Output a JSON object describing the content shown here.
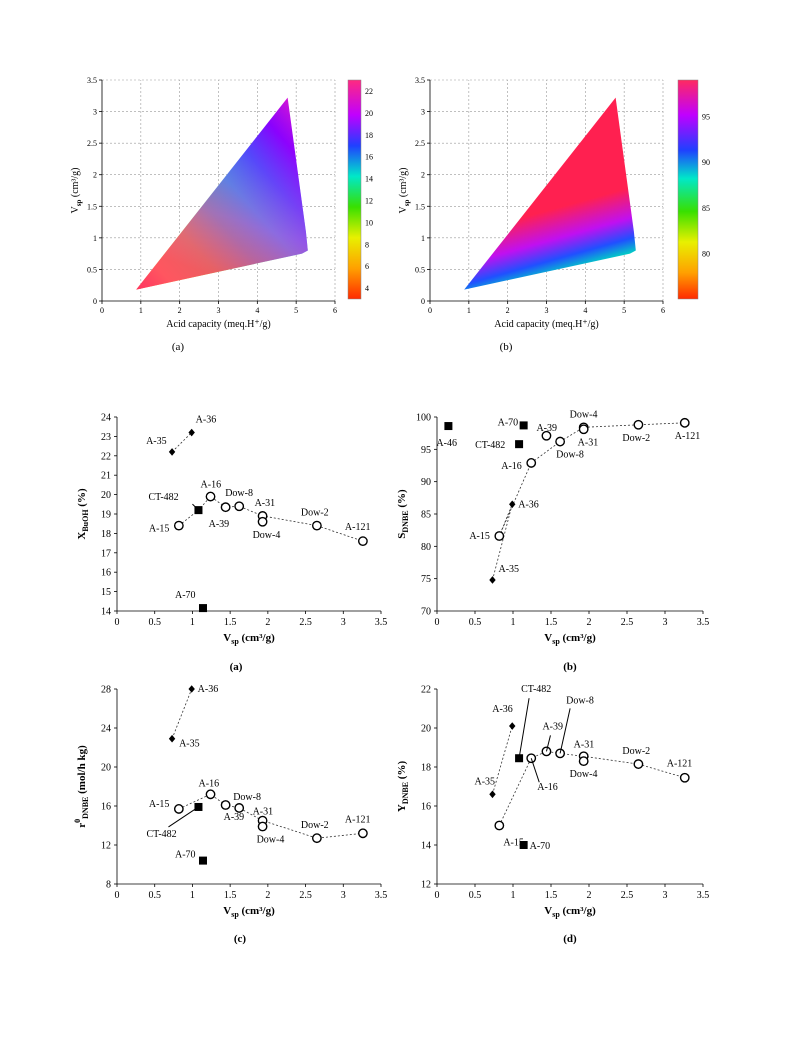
{
  "figure_top": {
    "panels": [
      {
        "caption": "(a)",
        "xlabel": "Acid capacity (meq.H⁺/g)",
        "ylabel_main": "V",
        "ylabel_sub": "sp",
        "ylabel_tail": " (cm³/g)",
        "xticks": [
          "0",
          "1",
          "2",
          "3",
          "4",
          "5",
          "6"
        ],
        "yticks": [
          "0",
          "0.5",
          "1",
          "1.5",
          "2",
          "2.5",
          "3",
          "3.5"
        ],
        "colorbar_ticks": [
          "4",
          "6",
          "8",
          "10",
          "12",
          "14",
          "16",
          "18",
          "20",
          "22"
        ],
        "colorbar_range": [
          3,
          23
        ]
      },
      {
        "caption": "(b)",
        "xlabel": "Acid capacity (meq.H⁺/g)",
        "ylabel_main": "V",
        "ylabel_sub": "sp",
        "ylabel_tail": " (cm³/g)",
        "xticks": [
          "0",
          "1",
          "2",
          "3",
          "4",
          "5",
          "6"
        ],
        "yticks": [
          "0",
          "0.5",
          "1",
          "1.5",
          "2",
          "2.5",
          "3",
          "3.5"
        ],
        "colorbar_ticks": [
          "80",
          "85",
          "90",
          "95"
        ],
        "colorbar_range": [
          75,
          99
        ]
      }
    ]
  },
  "chart_data": [
    {
      "type": "scatter",
      "caption": "(a)",
      "ylabel_main": "X",
      "ylabel_sub": "BuOH",
      "ylabel_tail": " (%)",
      "xlabel_main": "V",
      "xlabel_sub": "sp",
      "xlabel_tail": " (cm³/g)",
      "xlim": [
        0,
        3.5
      ],
      "ylim": [
        14,
        24
      ],
      "xticks": [
        0,
        0.5,
        1,
        1.5,
        2,
        2.5,
        3,
        3.5
      ],
      "yticks": [
        14,
        15,
        16,
        17,
        18,
        19,
        20,
        21,
        22,
        23,
        24
      ],
      "points": [
        {
          "label": "A-35",
          "x": 0.73,
          "y": 22.2,
          "marker": "diamond"
        },
        {
          "label": "A-36",
          "x": 0.99,
          "y": 23.2,
          "marker": "diamond"
        },
        {
          "label": "A-15",
          "x": 0.82,
          "y": 18.4,
          "marker": "circle"
        },
        {
          "label": "CT-482",
          "x": 1.08,
          "y": 19.2,
          "marker": "square"
        },
        {
          "label": "A-16",
          "x": 1.24,
          "y": 19.9,
          "marker": "circle"
        },
        {
          "label": "A-39",
          "x": 1.44,
          "y": 19.35,
          "marker": "circle"
        },
        {
          "label": "Dow-8",
          "x": 1.62,
          "y": 19.4,
          "marker": "circle"
        },
        {
          "label": "A-31",
          "x": 1.93,
          "y": 18.9,
          "marker": "circle"
        },
        {
          "label": "Dow-4",
          "x": 1.93,
          "y": 18.6,
          "marker": "circle"
        },
        {
          "label": "Dow-2",
          "x": 2.65,
          "y": 18.4,
          "marker": "circle"
        },
        {
          "label": "A-121",
          "x": 3.26,
          "y": 17.6,
          "marker": "circle"
        },
        {
          "label": "A-70",
          "x": 1.14,
          "y": 14.15,
          "marker": "square"
        }
      ]
    },
    {
      "type": "scatter",
      "caption": "(b)",
      "ylabel_main": "S",
      "ylabel_sub": "DNBE",
      "ylabel_tail": " (%)",
      "xlabel_main": "V",
      "xlabel_sub": "sp",
      "xlabel_tail": " (cm³/g)",
      "xlim": [
        0,
        3.5
      ],
      "ylim": [
        70,
        100
      ],
      "xticks": [
        0,
        0.5,
        1,
        1.5,
        2,
        2.5,
        3,
        3.5
      ],
      "yticks": [
        70,
        75,
        80,
        85,
        90,
        95,
        100
      ],
      "points": [
        {
          "label": "A-46",
          "x": 0.15,
          "y": 98.6,
          "marker": "square"
        },
        {
          "label": "A-70",
          "x": 1.14,
          "y": 98.7,
          "marker": "square"
        },
        {
          "label": "CT-482",
          "x": 1.08,
          "y": 95.8,
          "marker": "square"
        },
        {
          "label": "A-39",
          "x": 1.44,
          "y": 97.1,
          "marker": "circle"
        },
        {
          "label": "Dow-4",
          "x": 1.93,
          "y": 98.4,
          "marker": "circle"
        },
        {
          "label": "A-31",
          "x": 1.93,
          "y": 98.1,
          "marker": "circle"
        },
        {
          "label": "Dow-8",
          "x": 1.62,
          "y": 96.2,
          "marker": "circle"
        },
        {
          "label": "A-16",
          "x": 1.24,
          "y": 92.9,
          "marker": "circle"
        },
        {
          "label": "Dow-2",
          "x": 2.65,
          "y": 98.8,
          "marker": "circle"
        },
        {
          "label": "A-121",
          "x": 3.26,
          "y": 99.1,
          "marker": "circle"
        },
        {
          "label": "A-36",
          "x": 0.99,
          "y": 86.5,
          "marker": "diamond"
        },
        {
          "label": "A-15",
          "x": 0.82,
          "y": 81.6,
          "marker": "circle"
        },
        {
          "label": "A-35",
          "x": 0.73,
          "y": 74.8,
          "marker": "diamond"
        }
      ]
    },
    {
      "type": "scatter",
      "caption": "(c)",
      "ylabel_main": "r",
      "ylabel_sup": "0",
      "ylabel_sub": "DNBE",
      "ylabel_tail": " (mol/h kg)",
      "xlabel_main": "V",
      "xlabel_sub": "sp",
      "xlabel_tail": " (cm³/g)",
      "xlim": [
        0,
        3.5
      ],
      "ylim": [
        8,
        28
      ],
      "xticks": [
        0,
        0.5,
        1,
        1.5,
        2,
        2.5,
        3,
        3.5
      ],
      "yticks": [
        8,
        12,
        16,
        20,
        24,
        28
      ],
      "points": [
        {
          "label": "A-36",
          "x": 0.99,
          "y": 28.0,
          "marker": "diamond"
        },
        {
          "label": "A-35",
          "x": 0.73,
          "y": 22.9,
          "marker": "diamond"
        },
        {
          "label": "A-15",
          "x": 0.82,
          "y": 15.7,
          "marker": "circle"
        },
        {
          "label": "CT-482",
          "x": 1.08,
          "y": 15.9,
          "marker": "square"
        },
        {
          "label": "A-16",
          "x": 1.24,
          "y": 17.2,
          "marker": "circle"
        },
        {
          "label": "A-39",
          "x": 1.44,
          "y": 16.1,
          "marker": "circle"
        },
        {
          "label": "Dow-8",
          "x": 1.62,
          "y": 15.8,
          "marker": "circle"
        },
        {
          "label": "A-31",
          "x": 1.93,
          "y": 14.5,
          "marker": "circle"
        },
        {
          "label": "Dow-4",
          "x": 1.93,
          "y": 13.9,
          "marker": "circle"
        },
        {
          "label": "Dow-2",
          "x": 2.65,
          "y": 12.7,
          "marker": "circle"
        },
        {
          "label": "A-121",
          "x": 3.26,
          "y": 13.2,
          "marker": "circle"
        },
        {
          "label": "A-70",
          "x": 1.14,
          "y": 10.4,
          "marker": "square"
        }
      ]
    },
    {
      "type": "scatter",
      "caption": "(d)",
      "ylabel_main": "Y",
      "ylabel_sub": "DNBE",
      "ylabel_tail": " (%)",
      "xlabel_main": "V",
      "xlabel_sub": "sp",
      "xlabel_tail": " (cm³/g)",
      "xlim": [
        0,
        3.5
      ],
      "ylim": [
        12,
        22
      ],
      "xticks": [
        0,
        0.5,
        1,
        1.5,
        2,
        2.5,
        3,
        3.5
      ],
      "yticks": [
        12,
        14,
        16,
        18,
        20,
        22
      ],
      "points": [
        {
          "label": "A-36",
          "x": 0.99,
          "y": 20.1,
          "marker": "diamond"
        },
        {
          "label": "A-35",
          "x": 0.73,
          "y": 16.6,
          "marker": "diamond"
        },
        {
          "label": "CT-482",
          "x": 1.08,
          "y": 18.45,
          "marker": "square"
        },
        {
          "label": "A-39",
          "x": 1.44,
          "y": 18.8,
          "marker": "circle"
        },
        {
          "label": "Dow-8",
          "x": 1.62,
          "y": 18.7,
          "marker": "circle"
        },
        {
          "label": "A-16",
          "x": 1.24,
          "y": 18.45,
          "marker": "circle"
        },
        {
          "label": "A-31",
          "x": 1.93,
          "y": 18.55,
          "marker": "circle"
        },
        {
          "label": "Dow-4",
          "x": 1.93,
          "y": 18.3,
          "marker": "circle"
        },
        {
          "label": "Dow-2",
          "x": 2.65,
          "y": 18.15,
          "marker": "circle"
        },
        {
          "label": "A-121",
          "x": 3.26,
          "y": 17.45,
          "marker": "circle"
        },
        {
          "label": "A-15",
          "x": 0.82,
          "y": 15.0,
          "marker": "circle"
        },
        {
          "label": "A-70",
          "x": 1.14,
          "y": 14.0,
          "marker": "square"
        }
      ]
    }
  ]
}
